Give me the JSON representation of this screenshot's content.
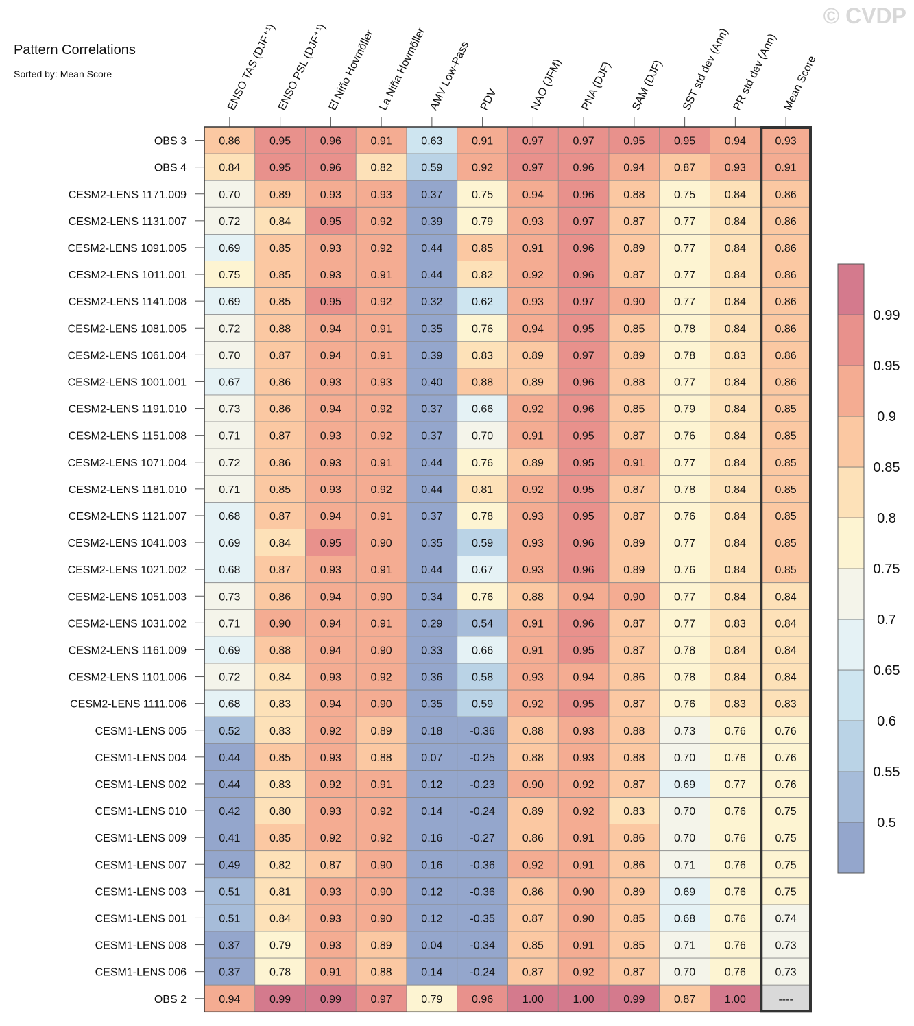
{
  "watermark": "© CVDP",
  "chart_data": {
    "type": "heatmap",
    "title": "Pattern Correlations",
    "subtitle": "Sorted by: Mean Score",
    "columns": [
      "ENSO TAS (DJF⁺¹)",
      "ENSO PSL (DJF⁺¹)",
      "El Niño Hovmöller",
      "La Niña Hovmöller",
      "AMV Low-Pass",
      "PDV",
      "NAO (JFM)",
      "PNA (DJF)",
      "SAM (DJF)",
      "SST std dev (Ann)",
      "PR std dev (Ann)",
      "Mean Score"
    ],
    "rows": [
      {
        "label": "OBS 3",
        "values": [
          "0.86",
          "0.95",
          "0.96",
          "0.91",
          "0.63",
          "0.91",
          "0.97",
          "0.97",
          "0.95",
          "0.95",
          "0.94",
          "0.93"
        ]
      },
      {
        "label": "OBS 4",
        "values": [
          "0.84",
          "0.95",
          "0.96",
          "0.82",
          "0.59",
          "0.92",
          "0.97",
          "0.96",
          "0.94",
          "0.87",
          "0.93",
          "0.91"
        ]
      },
      {
        "label": "CESM2-LENS 1171.009",
        "values": [
          "0.70",
          "0.89",
          "0.93",
          "0.93",
          "0.37",
          "0.75",
          "0.94",
          "0.96",
          "0.88",
          "0.75",
          "0.84",
          "0.86"
        ]
      },
      {
        "label": "CESM2-LENS 1131.007",
        "values": [
          "0.72",
          "0.84",
          "0.95",
          "0.92",
          "0.39",
          "0.79",
          "0.93",
          "0.97",
          "0.87",
          "0.77",
          "0.84",
          "0.86"
        ]
      },
      {
        "label": "CESM2-LENS 1091.005",
        "values": [
          "0.69",
          "0.85",
          "0.93",
          "0.92",
          "0.44",
          "0.85",
          "0.91",
          "0.96",
          "0.89",
          "0.77",
          "0.84",
          "0.86"
        ]
      },
      {
        "label": "CESM2-LENS 1011.001",
        "values": [
          "0.75",
          "0.85",
          "0.93",
          "0.91",
          "0.44",
          "0.82",
          "0.92",
          "0.96",
          "0.87",
          "0.77",
          "0.84",
          "0.86"
        ]
      },
      {
        "label": "CESM2-LENS 1141.008",
        "values": [
          "0.69",
          "0.85",
          "0.95",
          "0.92",
          "0.32",
          "0.62",
          "0.93",
          "0.97",
          "0.90",
          "0.77",
          "0.84",
          "0.86"
        ]
      },
      {
        "label": "CESM2-LENS 1081.005",
        "values": [
          "0.72",
          "0.88",
          "0.94",
          "0.91",
          "0.35",
          "0.76",
          "0.94",
          "0.95",
          "0.85",
          "0.78",
          "0.84",
          "0.86"
        ]
      },
      {
        "label": "CESM2-LENS 1061.004",
        "values": [
          "0.70",
          "0.87",
          "0.94",
          "0.91",
          "0.39",
          "0.83",
          "0.89",
          "0.97",
          "0.89",
          "0.78",
          "0.83",
          "0.86"
        ]
      },
      {
        "label": "CESM2-LENS 1001.001",
        "values": [
          "0.67",
          "0.86",
          "0.93",
          "0.93",
          "0.40",
          "0.88",
          "0.89",
          "0.96",
          "0.88",
          "0.77",
          "0.84",
          "0.86"
        ]
      },
      {
        "label": "CESM2-LENS 1191.010",
        "values": [
          "0.73",
          "0.86",
          "0.94",
          "0.92",
          "0.37",
          "0.66",
          "0.92",
          "0.96",
          "0.85",
          "0.79",
          "0.84",
          "0.85"
        ]
      },
      {
        "label": "CESM2-LENS 1151.008",
        "values": [
          "0.71",
          "0.87",
          "0.93",
          "0.92",
          "0.37",
          "0.70",
          "0.91",
          "0.95",
          "0.87",
          "0.76",
          "0.84",
          "0.85"
        ]
      },
      {
        "label": "CESM2-LENS 1071.004",
        "values": [
          "0.72",
          "0.86",
          "0.93",
          "0.91",
          "0.44",
          "0.76",
          "0.89",
          "0.95",
          "0.91",
          "0.77",
          "0.84",
          "0.85"
        ]
      },
      {
        "label": "CESM2-LENS 1181.010",
        "values": [
          "0.71",
          "0.85",
          "0.93",
          "0.92",
          "0.44",
          "0.81",
          "0.92",
          "0.95",
          "0.87",
          "0.78",
          "0.84",
          "0.85"
        ]
      },
      {
        "label": "CESM2-LENS 1121.007",
        "values": [
          "0.68",
          "0.87",
          "0.94",
          "0.91",
          "0.37",
          "0.78",
          "0.93",
          "0.95",
          "0.87",
          "0.76",
          "0.84",
          "0.85"
        ]
      },
      {
        "label": "CESM2-LENS 1041.003",
        "values": [
          "0.69",
          "0.84",
          "0.95",
          "0.90",
          "0.35",
          "0.59",
          "0.93",
          "0.96",
          "0.89",
          "0.77",
          "0.84",
          "0.85"
        ]
      },
      {
        "label": "CESM2-LENS 1021.002",
        "values": [
          "0.68",
          "0.87",
          "0.93",
          "0.91",
          "0.44",
          "0.67",
          "0.93",
          "0.96",
          "0.89",
          "0.76",
          "0.84",
          "0.85"
        ]
      },
      {
        "label": "CESM2-LENS 1051.003",
        "values": [
          "0.73",
          "0.86",
          "0.94",
          "0.90",
          "0.34",
          "0.76",
          "0.88",
          "0.94",
          "0.90",
          "0.77",
          "0.84",
          "0.84"
        ]
      },
      {
        "label": "CESM2-LENS 1031.002",
        "values": [
          "0.71",
          "0.90",
          "0.94",
          "0.91",
          "0.29",
          "0.54",
          "0.91",
          "0.96",
          "0.87",
          "0.77",
          "0.83",
          "0.84"
        ]
      },
      {
        "label": "CESM2-LENS 1161.009",
        "values": [
          "0.69",
          "0.88",
          "0.94",
          "0.90",
          "0.33",
          "0.66",
          "0.91",
          "0.95",
          "0.87",
          "0.78",
          "0.84",
          "0.84"
        ]
      },
      {
        "label": "CESM2-LENS 1101.006",
        "values": [
          "0.72",
          "0.84",
          "0.93",
          "0.92",
          "0.36",
          "0.58",
          "0.93",
          "0.94",
          "0.86",
          "0.78",
          "0.84",
          "0.84"
        ]
      },
      {
        "label": "CESM2-LENS 1111.006",
        "values": [
          "0.68",
          "0.83",
          "0.94",
          "0.90",
          "0.35",
          "0.59",
          "0.92",
          "0.95",
          "0.87",
          "0.76",
          "0.83",
          "0.83"
        ]
      },
      {
        "label": "CESM1-LENS 005",
        "values": [
          "0.52",
          "0.83",
          "0.92",
          "0.89",
          "0.18",
          "-0.36",
          "0.88",
          "0.93",
          "0.88",
          "0.73",
          "0.76",
          "0.76"
        ]
      },
      {
        "label": "CESM1-LENS 004",
        "values": [
          "0.44",
          "0.85",
          "0.93",
          "0.88",
          "0.07",
          "-0.25",
          "0.88",
          "0.93",
          "0.88",
          "0.70",
          "0.76",
          "0.76"
        ]
      },
      {
        "label": "CESM1-LENS 002",
        "values": [
          "0.44",
          "0.83",
          "0.92",
          "0.91",
          "0.12",
          "-0.23",
          "0.90",
          "0.92",
          "0.87",
          "0.69",
          "0.77",
          "0.76"
        ]
      },
      {
        "label": "CESM1-LENS 010",
        "values": [
          "0.42",
          "0.80",
          "0.93",
          "0.92",
          "0.14",
          "-0.24",
          "0.89",
          "0.92",
          "0.83",
          "0.70",
          "0.76",
          "0.75"
        ]
      },
      {
        "label": "CESM1-LENS 009",
        "values": [
          "0.41",
          "0.85",
          "0.92",
          "0.92",
          "0.16",
          "-0.27",
          "0.86",
          "0.91",
          "0.86",
          "0.70",
          "0.76",
          "0.75"
        ]
      },
      {
        "label": "CESM1-LENS 007",
        "values": [
          "0.49",
          "0.82",
          "0.87",
          "0.90",
          "0.16",
          "-0.36",
          "0.92",
          "0.91",
          "0.86",
          "0.71",
          "0.76",
          "0.75"
        ]
      },
      {
        "label": "CESM1-LENS 003",
        "values": [
          "0.51",
          "0.81",
          "0.93",
          "0.90",
          "0.12",
          "-0.36",
          "0.86",
          "0.90",
          "0.89",
          "0.69",
          "0.76",
          "0.75"
        ]
      },
      {
        "label": "CESM1-LENS 001",
        "values": [
          "0.51",
          "0.84",
          "0.93",
          "0.90",
          "0.12",
          "-0.35",
          "0.87",
          "0.90",
          "0.85",
          "0.68",
          "0.76",
          "0.74"
        ]
      },
      {
        "label": "CESM1-LENS 008",
        "values": [
          "0.37",
          "0.79",
          "0.93",
          "0.89",
          "0.04",
          "-0.34",
          "0.85",
          "0.91",
          "0.85",
          "0.71",
          "0.76",
          "0.73"
        ]
      },
      {
        "label": "CESM1-LENS 006",
        "values": [
          "0.37",
          "0.78",
          "0.91",
          "0.88",
          "0.14",
          "-0.24",
          "0.87",
          "0.92",
          "0.87",
          "0.70",
          "0.76",
          "0.73"
        ]
      },
      {
        "label": "OBS 2",
        "values": [
          "0.94",
          "0.99",
          "0.99",
          "0.97",
          "0.79",
          "0.96",
          "1.00",
          "1.00",
          "0.99",
          "0.87",
          "1.00",
          "----"
        ]
      }
    ],
    "colorbar": {
      "levels": [
        0.5,
        0.55,
        0.6,
        0.65,
        0.7,
        0.75,
        0.8,
        0.85,
        0.9,
        0.95,
        0.99
      ],
      "labels": [
        "0.5",
        "0.55",
        "0.6",
        "0.65",
        "0.7",
        "0.75",
        "0.8",
        "0.85",
        "0.9",
        "0.95",
        "0.99"
      ],
      "colors": [
        "#94a6cc",
        "#a6bcd9",
        "#bad3e6",
        "#cee5f0",
        "#e5f2f5",
        "#f4f4ea",
        "#fdf4d2",
        "#fde1b8",
        "#fbc8a2",
        "#f4ac92",
        "#e8918c",
        "#d47a8d"
      ]
    },
    "missing_color": "#d9d9d9"
  }
}
